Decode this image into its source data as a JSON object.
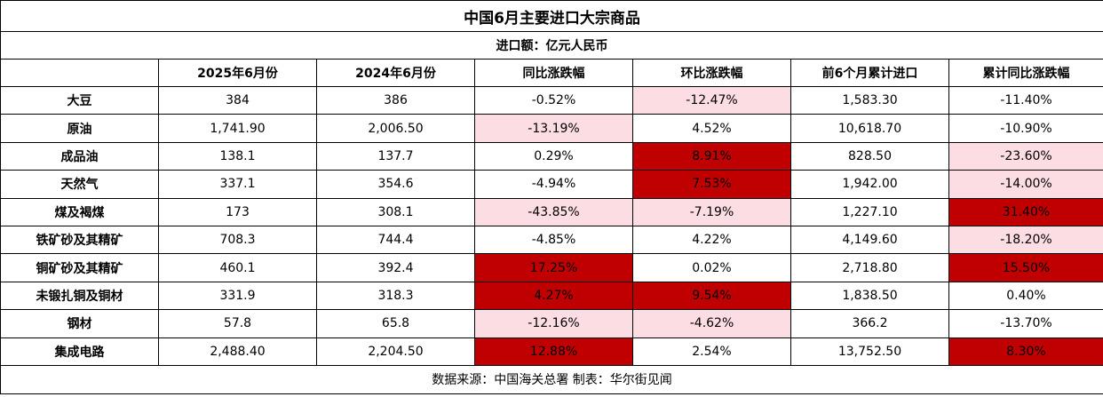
{
  "title": "中国6月主要进口大宗商品",
  "unit_label": "进口额：亿元人民币",
  "columns": [
    "",
    "2025年6月份",
    "2024年6月份",
    "同比涨跌幅",
    "环比涨跌幅",
    "前6个月累计进口",
    "累计同比涨跌幅"
  ],
  "rows": [
    {
      "name": "大豆",
      "values": [
        "384",
        "386",
        "-0.52%",
        "-12.47%",
        "1,583.30",
        "-11.40%"
      ],
      "highlights": [
        "",
        "",
        "",
        "pink",
        "",
        ""
      ]
    },
    {
      "name": "原油",
      "values": [
        "1,741.90",
        "2,006.50",
        "-13.19%",
        "4.52%",
        "10,618.70",
        "-10.90%"
      ],
      "highlights": [
        "",
        "",
        "pink",
        "",
        "",
        ""
      ]
    },
    {
      "name": "成品油",
      "values": [
        "138.1",
        "137.7",
        "0.29%",
        "8.91%",
        "828.50",
        "-23.60%"
      ],
      "highlights": [
        "",
        "",
        "",
        "red",
        "",
        "pink"
      ]
    },
    {
      "name": "天然气",
      "values": [
        "337.1",
        "354.6",
        "-4.94%",
        "7.53%",
        "1,942.00",
        "-14.00%"
      ],
      "highlights": [
        "",
        "",
        "",
        "red",
        "",
        "pink"
      ]
    },
    {
      "name": "煤及褐煤",
      "values": [
        "173",
        "308.1",
        "-43.85%",
        "-7.19%",
        "1,227.10",
        "31.40%"
      ],
      "highlights": [
        "",
        "",
        "pink",
        "pink",
        "",
        "red"
      ]
    },
    {
      "name": "铁矿砂及其精矿",
      "values": [
        "708.3",
        "744.4",
        "-4.85%",
        "4.22%",
        "4,149.60",
        "-18.20%"
      ],
      "highlights": [
        "",
        "",
        "",
        "",
        "",
        "pink"
      ]
    },
    {
      "name": "铜矿砂及其精矿",
      "values": [
        "460.1",
        "392.4",
        "17.25%",
        "0.02%",
        "2,718.80",
        "15.50%"
      ],
      "highlights": [
        "",
        "",
        "red",
        "",
        "",
        "red"
      ]
    },
    {
      "name": "未锻扎铜及铜材",
      "values": [
        "331.9",
        "318.3",
        "4.27%",
        "9.54%",
        "1,838.50",
        "0.40%"
      ],
      "highlights": [
        "",
        "",
        "red",
        "red",
        "",
        ""
      ]
    },
    {
      "name": "钢材",
      "values": [
        "57.8",
        "65.8",
        "-12.16%",
        "-4.62%",
        "366.2",
        "-13.70%"
      ],
      "highlights": [
        "",
        "",
        "pink",
        "pink",
        "",
        ""
      ]
    },
    {
      "name": "集成电路",
      "values": [
        "2,488.40",
        "2,204.50",
        "12.88%",
        "2.54%",
        "13,752.50",
        "8.30%"
      ],
      "highlights": [
        "",
        "",
        "red",
        "",
        "",
        "red"
      ]
    }
  ],
  "source": "数据来源：中国海关总署 制表：华尔街见闻",
  "colors": {
    "pink": "#fcdde3",
    "red": "#c00000",
    "border": "#000000"
  }
}
